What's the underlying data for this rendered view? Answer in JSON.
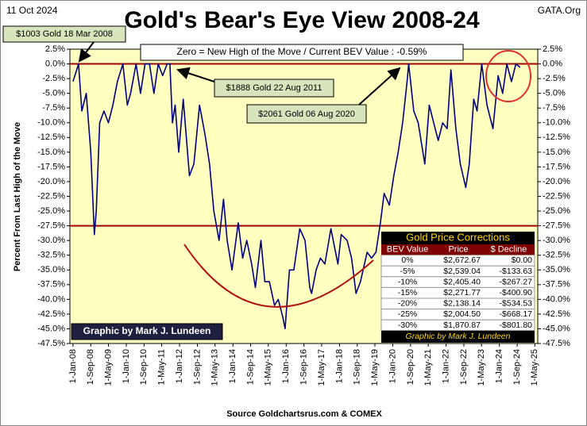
{
  "chart_data": {
    "type": "line",
    "title": "Gold's Bear's Eye View 2008-24",
    "date_label": "11 Oct 2024",
    "source_site": "GATA.Org",
    "x_label": "Source Goldchartsrus.com  & COMEX",
    "y_label": "Percent  From Last High of the Move",
    "color": "#000080",
    "grid": false,
    "hlines": [
      0,
      -27.5
    ],
    "hline_color": "#a00000",
    "annotations": [
      "$1003 Gold 18 Mar 2008",
      "$1888 Gold 22 Aug 2011",
      "$2061 Gold 06 Aug 2020",
      "Zero = New High of the Move / Current  BEV Value : -0.59%",
      "Graphic by Mark J. Lundeen"
    ],
    "xlim": [
      "2007-11-20",
      "2025-06-10"
    ],
    "xticks": [
      {
        "value": "2008-01-01",
        "label": "1-Jan-08"
      },
      {
        "value": "2008-09-01",
        "label": "1-Sep-08"
      },
      {
        "value": "2009-05-01",
        "label": "1-May-09"
      },
      {
        "value": "2010-01-01",
        "label": "1-Jan-10"
      },
      {
        "value": "2010-09-01",
        "label": "1-Sep-10"
      },
      {
        "value": "2011-05-01",
        "label": "1-May-11"
      },
      {
        "value": "2012-01-01",
        "label": "1-Jan-12"
      },
      {
        "value": "2012-09-01",
        "label": "1-Sep-12"
      },
      {
        "value": "2013-05-01",
        "label": "1-May-13"
      },
      {
        "value": "2014-01-01",
        "label": "1-Jan-14"
      },
      {
        "value": "2014-09-01",
        "label": "1-Sep-14"
      },
      {
        "value": "2015-05-01",
        "label": "1-May-15"
      },
      {
        "value": "2016-01-01",
        "label": "1-Jan-16"
      },
      {
        "value": "2016-09-01",
        "label": "1-Sep-16"
      },
      {
        "value": "2017-05-01",
        "label": "1-May-17"
      },
      {
        "value": "2018-01-01",
        "label": "1-Jan-18"
      },
      {
        "value": "2018-09-01",
        "label": "1-Sep-18"
      },
      {
        "value": "2019-05-01",
        "label": "1-May-19"
      },
      {
        "value": "2020-01-01",
        "label": "1-Jan-20"
      },
      {
        "value": "2020-09-01",
        "label": "1-Sep-20"
      },
      {
        "value": "2021-05-01",
        "label": "1-May-21"
      },
      {
        "value": "2022-01-01",
        "label": "1-Jan-22"
      },
      {
        "value": "2022-09-01",
        "label": "1-Sep-22"
      },
      {
        "value": "2023-05-01",
        "label": "1-May-23"
      },
      {
        "value": "2024-01-01",
        "label": "1-Jan-24"
      },
      {
        "value": "2024-09-01",
        "label": "1-Sep-24"
      },
      {
        "value": "2025-05-01",
        "label": "1-May-25"
      }
    ],
    "ylim": [
      -47.5,
      2.5
    ],
    "yticks": [
      {
        "value": 2.5,
        "label": "2.5%"
      },
      {
        "value": 0,
        "label": "0.0%"
      },
      {
        "value": -2.5,
        "label": "-2.5%"
      },
      {
        "value": -5,
        "label": "-5.0%"
      },
      {
        "value": -7.5,
        "label": "-7.5%"
      },
      {
        "value": -10,
        "label": "-10.0%"
      },
      {
        "value": -12.5,
        "label": "-12.5%"
      },
      {
        "value": -15,
        "label": "-15.0%"
      },
      {
        "value": -17.5,
        "label": "-17.5%"
      },
      {
        "value": -20,
        "label": "-20.0%"
      },
      {
        "value": -22.5,
        "label": "-22.5%"
      },
      {
        "value": -25,
        "label": "-25.0%"
      },
      {
        "value": -27.5,
        "label": "-27.5%"
      },
      {
        "value": -30,
        "label": "-30.0%"
      },
      {
        "value": -32.5,
        "label": "-32.5%"
      },
      {
        "value": -35,
        "label": "-35.0%"
      },
      {
        "value": -37.5,
        "label": "-37.5%"
      },
      {
        "value": -40,
        "label": "-40.0%"
      },
      {
        "value": -42.5,
        "label": "-42.5%"
      },
      {
        "value": -45,
        "label": "-45.0%"
      },
      {
        "value": -47.5,
        "label": "-47.5%"
      }
    ],
    "x": [
      "2008-01-01",
      "2008-03-18",
      "2008-05-01",
      "2008-07-01",
      "2008-09-01",
      "2008-10-20",
      "2008-11-15",
      "2009-01-01",
      "2009-03-01",
      "2009-05-01",
      "2009-07-01",
      "2009-09-01",
      "2009-11-15",
      "2010-01-15",
      "2010-03-01",
      "2010-05-15",
      "2010-07-15",
      "2010-09-15",
      "2010-11-15",
      "2011-01-15",
      "2011-03-15",
      "2011-05-15",
      "2011-07-15",
      "2011-08-22",
      "2011-09-25",
      "2011-11-01",
      "2011-12-20",
      "2012-02-20",
      "2012-05-15",
      "2012-07-15",
      "2012-10-01",
      "2012-12-15",
      "2013-02-15",
      "2013-04-15",
      "2013-06-25",
      "2013-08-25",
      "2013-10-15",
      "2013-12-20",
      "2014-03-15",
      "2014-05-15",
      "2014-07-10",
      "2014-09-15",
      "2014-11-05",
      "2015-01-20",
      "2015-03-15",
      "2015-05-15",
      "2015-07-25",
      "2015-09-15",
      "2015-11-15",
      "2015-12-17",
      "2016-02-15",
      "2016-04-15",
      "2016-07-05",
      "2016-09-15",
      "2016-11-20",
      "2016-12-15",
      "2017-02-15",
      "2017-04-15",
      "2017-06-15",
      "2017-09-05",
      "2017-12-10",
      "2018-01-25",
      "2018-04-15",
      "2018-06-15",
      "2018-08-15",
      "2018-10-15",
      "2019-01-15",
      "2019-03-15",
      "2019-05-15",
      "2019-07-15",
      "2019-09-05",
      "2019-11-15",
      "2020-01-15",
      "2020-03-15",
      "2020-05-15",
      "2020-07-15",
      "2020-08-06",
      "2020-10-15",
      "2020-12-15",
      "2021-03-15",
      "2021-05-15",
      "2021-07-15",
      "2021-09-15",
      "2021-11-15",
      "2022-01-15",
      "2022-03-08",
      "2022-05-15",
      "2022-07-15",
      "2022-09-28",
      "2022-11-15",
      "2023-01-15",
      "2023-03-01",
      "2023-05-04",
      "2023-07-15",
      "2023-10-05",
      "2023-12-15",
      "2024-02-15",
      "2024-04-12",
      "2024-06-15",
      "2024-08-15",
      "2024-10-11"
    ],
    "values": [
      -3,
      0,
      -8,
      -5,
      -15,
      -29,
      -25,
      -10,
      -8,
      -10,
      -7,
      -3,
      0,
      -7,
      -5,
      0,
      -5,
      0,
      0,
      -5,
      0,
      -2,
      0,
      0,
      -10,
      -7,
      -15,
      -6,
      -19,
      -17,
      -7,
      -12,
      -17,
      -25,
      -30,
      -23,
      -30,
      -35,
      -27,
      -33,
      -30,
      -34,
      -38,
      -30,
      -37,
      -37,
      -41,
      -40,
      -43,
      -45,
      -35,
      -35,
      -28,
      -30,
      -38,
      -39,
      -35,
      -33,
      -34,
      -28,
      -34,
      -29,
      -30,
      -33,
      -39,
      -37,
      -32,
      -33,
      -32,
      -27,
      -22,
      -24,
      -19,
      -15,
      -10,
      -3,
      0,
      -8,
      -10,
      -17,
      -7,
      -10,
      -13,
      -10,
      -11,
      -1,
      -11,
      -17,
      -21,
      -17,
      -6,
      -8,
      0,
      -7,
      -11,
      -2,
      -5,
      0,
      -3,
      0,
      -0.59
    ]
  },
  "table": {
    "title": "Gold Price Corrections",
    "header": [
      "BEV Value",
      "Price",
      "$ Decline"
    ],
    "rows": [
      [
        "0%",
        "$2,672.67",
        "$0.00"
      ],
      [
        "-5%",
        "$2,539.04",
        "-$133.63"
      ],
      [
        "-10%",
        "$2,405.40",
        "-$267.27"
      ],
      [
        "-15%",
        "$2,271.77",
        "-$400.90"
      ],
      [
        "-20%",
        "$2,138.14",
        "-$534.53"
      ],
      [
        "-25%",
        "$2,004.50",
        "-$668.17"
      ],
      [
        "-30%",
        "$1,870.87",
        "-$801.80"
      ]
    ],
    "footer": "Graphic by Mark J. Lundeen"
  }
}
